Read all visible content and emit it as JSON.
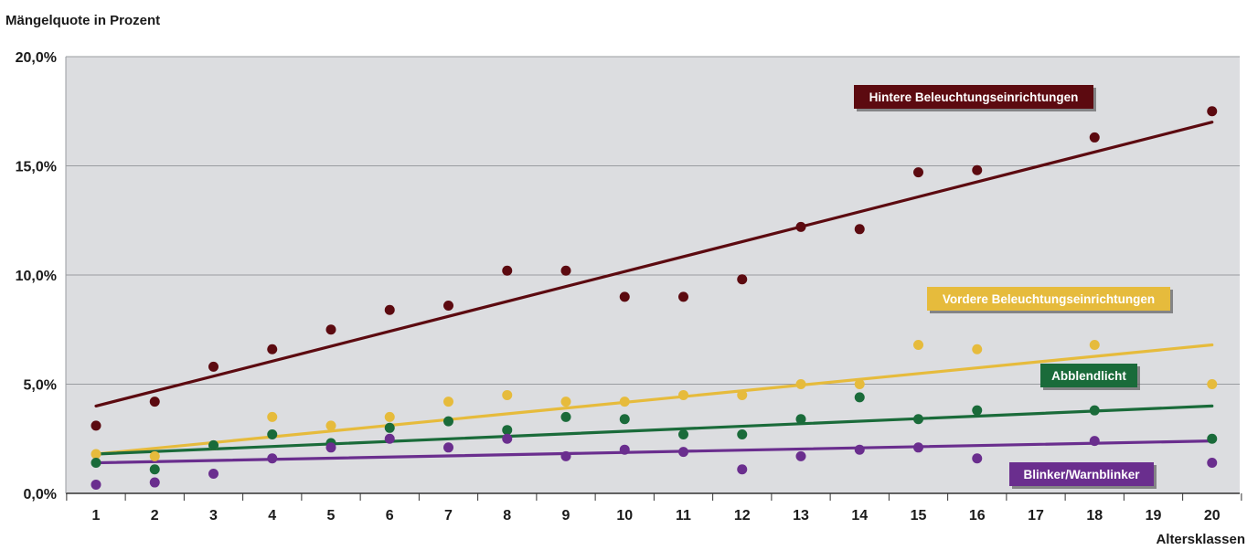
{
  "chart_data": {
    "type": "scatter",
    "title": "",
    "ylabel": "Mängelquote in Prozent",
    "xlabel": "Altersklassen",
    "ylim": [
      0,
      20
    ],
    "y_ticks": [
      "0,0%",
      "5,0%",
      "10,0%",
      "15,0%",
      "20,0%"
    ],
    "y_tick_values": [
      0,
      5,
      10,
      15,
      20
    ],
    "x_ticks": [
      1,
      2,
      3,
      4,
      5,
      6,
      7,
      8,
      9,
      10,
      11,
      12,
      13,
      14,
      15,
      16,
      17,
      18,
      19,
      20
    ],
    "grid": true,
    "series": [
      {
        "name": "Hintere Beleuchtungseinrichtungen",
        "color": "#5c0a10",
        "points": [
          [
            1,
            3.1
          ],
          [
            2,
            4.2
          ],
          [
            3,
            5.8
          ],
          [
            4,
            6.6
          ],
          [
            5,
            7.5
          ],
          [
            6,
            8.4
          ],
          [
            7,
            8.6
          ],
          [
            8,
            10.2
          ],
          [
            9,
            10.2
          ],
          [
            10,
            9.0
          ],
          [
            11,
            9.0
          ],
          [
            12,
            9.8
          ],
          [
            13,
            12.2
          ],
          [
            14,
            12.1
          ],
          [
            15,
            14.7
          ],
          [
            16,
            14.8
          ],
          [
            18,
            16.3
          ],
          [
            20,
            17.5
          ]
        ],
        "trend": [
          [
            1,
            4.0
          ],
          [
            20,
            17.0
          ]
        ]
      },
      {
        "name": "Vordere Beleuchtungseinrichtungen",
        "color": "#e6bb3c",
        "points": [
          [
            1,
            1.8
          ],
          [
            2,
            1.7
          ],
          [
            3,
            2.2
          ],
          [
            4,
            3.5
          ],
          [
            5,
            3.1
          ],
          [
            6,
            3.5
          ],
          [
            7,
            4.2
          ],
          [
            8,
            4.5
          ],
          [
            9,
            4.2
          ],
          [
            10,
            4.2
          ],
          [
            11,
            4.5
          ],
          [
            12,
            4.5
          ],
          [
            13,
            5.0
          ],
          [
            14,
            5.0
          ],
          [
            15,
            6.8
          ],
          [
            16,
            6.6
          ],
          [
            18,
            6.8
          ],
          [
            20,
            5.0
          ]
        ],
        "trend": [
          [
            1,
            1.8
          ],
          [
            20,
            6.8
          ]
        ]
      },
      {
        "name": "Abblendlicht",
        "color": "#1a6b3a",
        "points": [
          [
            1,
            1.4
          ],
          [
            2,
            1.1
          ],
          [
            3,
            2.2
          ],
          [
            4,
            2.7
          ],
          [
            5,
            2.3
          ],
          [
            6,
            3.0
          ],
          [
            7,
            3.3
          ],
          [
            8,
            2.9
          ],
          [
            9,
            3.5
          ],
          [
            10,
            3.4
          ],
          [
            11,
            2.7
          ],
          [
            12,
            2.7
          ],
          [
            13,
            3.4
          ],
          [
            14,
            4.4
          ],
          [
            15,
            3.4
          ],
          [
            16,
            3.8
          ],
          [
            18,
            3.8
          ],
          [
            20,
            2.5
          ]
        ],
        "trend": [
          [
            1,
            1.8
          ],
          [
            20,
            4.0
          ]
        ]
      },
      {
        "name": "Blinker/Warnblinker",
        "color": "#6a2e8e",
        "points": [
          [
            1,
            0.4
          ],
          [
            2,
            0.5
          ],
          [
            3,
            0.9
          ],
          [
            4,
            1.6
          ],
          [
            5,
            2.1
          ],
          [
            6,
            2.5
          ],
          [
            7,
            2.1
          ],
          [
            8,
            2.5
          ],
          [
            9,
            1.7
          ],
          [
            10,
            2.0
          ],
          [
            11,
            1.9
          ],
          [
            12,
            1.1
          ],
          [
            13,
            1.7
          ],
          [
            14,
            2.0
          ],
          [
            15,
            2.1
          ],
          [
            16,
            1.6
          ],
          [
            18,
            2.4
          ],
          [
            20,
            1.4
          ]
        ],
        "trend": [
          [
            1,
            1.4
          ],
          [
            20,
            2.4
          ]
        ]
      }
    ],
    "annotations": [
      {
        "series": "Hintere Beleuchtungseinrichtungen",
        "text": "Hintere Beleuchtungseinrichtungen"
      },
      {
        "series": "Vordere Beleuchtungseinrichtungen",
        "text": "Vordere Beleuchtungseinrichtungen"
      },
      {
        "series": "Abblendlicht",
        "text": "Abblendlicht"
      },
      {
        "series": "Blinker/Warnblinker",
        "text": "Blinker/Warnblinker"
      }
    ]
  }
}
